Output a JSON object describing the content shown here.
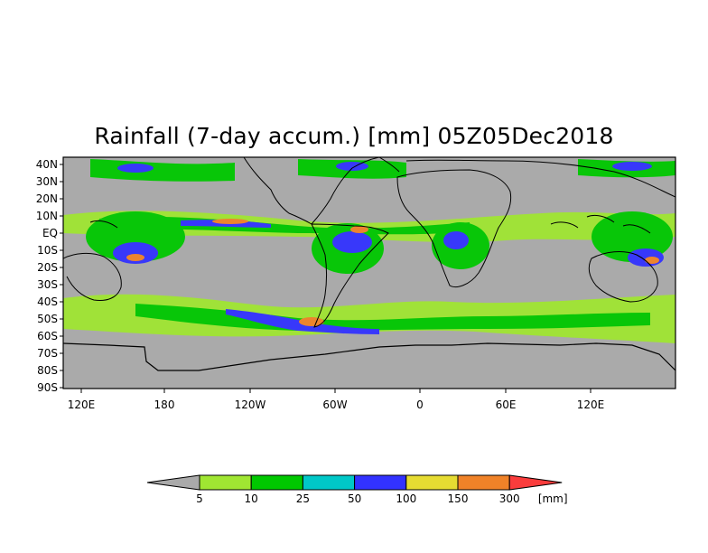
{
  "title": "Rainfall (7-day accum.) [mm] 05Z05Dec2018",
  "map": {
    "lat_labels": [
      "40N",
      "30N",
      "20N",
      "10N",
      "EQ",
      "10S",
      "20S",
      "30S",
      "40S",
      "50S",
      "60S",
      "70S",
      "80S",
      "90S"
    ],
    "lon_labels": [
      "120E",
      "180",
      "120W",
      "60W",
      "0",
      "60E",
      "120E"
    ],
    "background_color": "#aaaaaa",
    "coastline_color": "#000000"
  },
  "colorbar": {
    "unit": "[mm]",
    "labels": [
      "5",
      "10",
      "25",
      "50",
      "100",
      "150",
      "300"
    ],
    "colors": [
      "#aaaaaa",
      "#a0e632",
      "#00c800",
      "#00c8c8",
      "#3232ff",
      "#e6dc32",
      "#f08228",
      "#fa3c3c"
    ]
  }
}
